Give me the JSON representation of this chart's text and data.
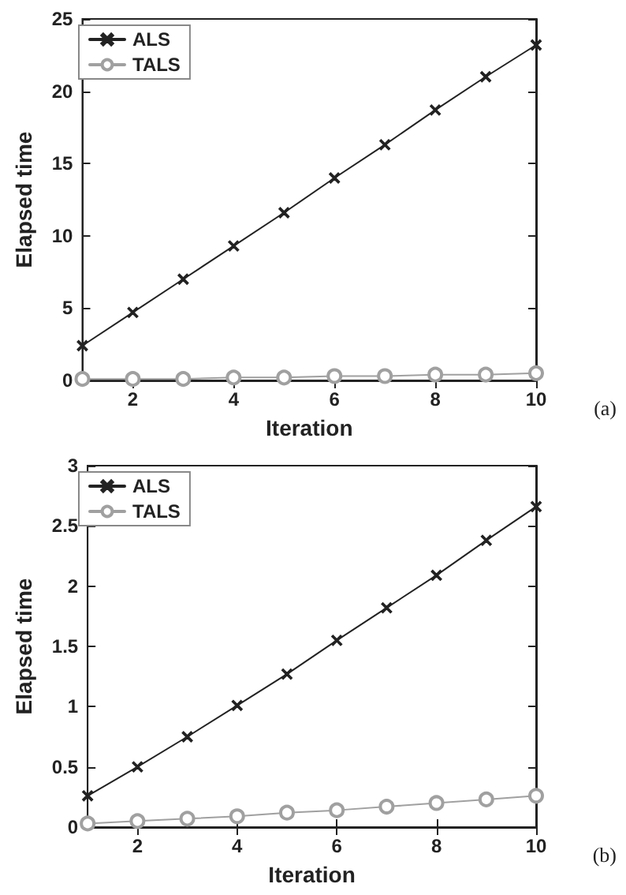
{
  "chart_data": [
    {
      "type": "line",
      "xlabel": "Iteration",
      "ylabel": "Elapsed time",
      "annotations": [
        "(a)"
      ],
      "x": [
        1,
        2,
        3,
        4,
        5,
        6,
        7,
        8,
        9,
        10
      ],
      "xlim": [
        1,
        10
      ],
      "xticks": [
        2,
        4,
        6,
        8,
        10
      ],
      "ylim": [
        0,
        25
      ],
      "yticks": [
        0,
        5,
        10,
        15,
        20,
        25
      ],
      "grid": false,
      "legend": "top left",
      "line_style": "solid",
      "series": [
        {
          "name": "ALS",
          "color": "#222222",
          "marker": "cross",
          "values": [
            2.4,
            4.7,
            7.0,
            9.3,
            11.6,
            14.0,
            16.3,
            18.7,
            21.0,
            23.2
          ]
        },
        {
          "name": "TALS",
          "color": "#a0a0a0",
          "marker": "circle",
          "values": [
            0.1,
            0.1,
            0.1,
            0.2,
            0.2,
            0.3,
            0.3,
            0.4,
            0.4,
            0.5
          ]
        }
      ]
    },
    {
      "type": "line",
      "xlabel": "Iteration",
      "ylabel": "Elapsed time",
      "annotations": [
        "(b)"
      ],
      "x": [
        1,
        2,
        3,
        4,
        5,
        6,
        7,
        8,
        9,
        10
      ],
      "xlim": [
        1,
        10
      ],
      "xticks": [
        2,
        4,
        6,
        8,
        10
      ],
      "ylim": [
        0,
        3
      ],
      "yticks": [
        0,
        0.5,
        1,
        1.5,
        2,
        2.5,
        3
      ],
      "grid": false,
      "legend": "top left",
      "line_style": "solid",
      "series": [
        {
          "name": "ALS",
          "color": "#222222",
          "marker": "cross",
          "values": [
            0.26,
            0.5,
            0.75,
            1.01,
            1.27,
            1.55,
            1.82,
            2.09,
            2.38,
            2.66
          ]
        },
        {
          "name": "TALS",
          "color": "#a0a0a0",
          "marker": "circle",
          "values": [
            0.03,
            0.05,
            0.07,
            0.09,
            0.12,
            0.14,
            0.17,
            0.2,
            0.23,
            0.26
          ]
        }
      ]
    }
  ]
}
